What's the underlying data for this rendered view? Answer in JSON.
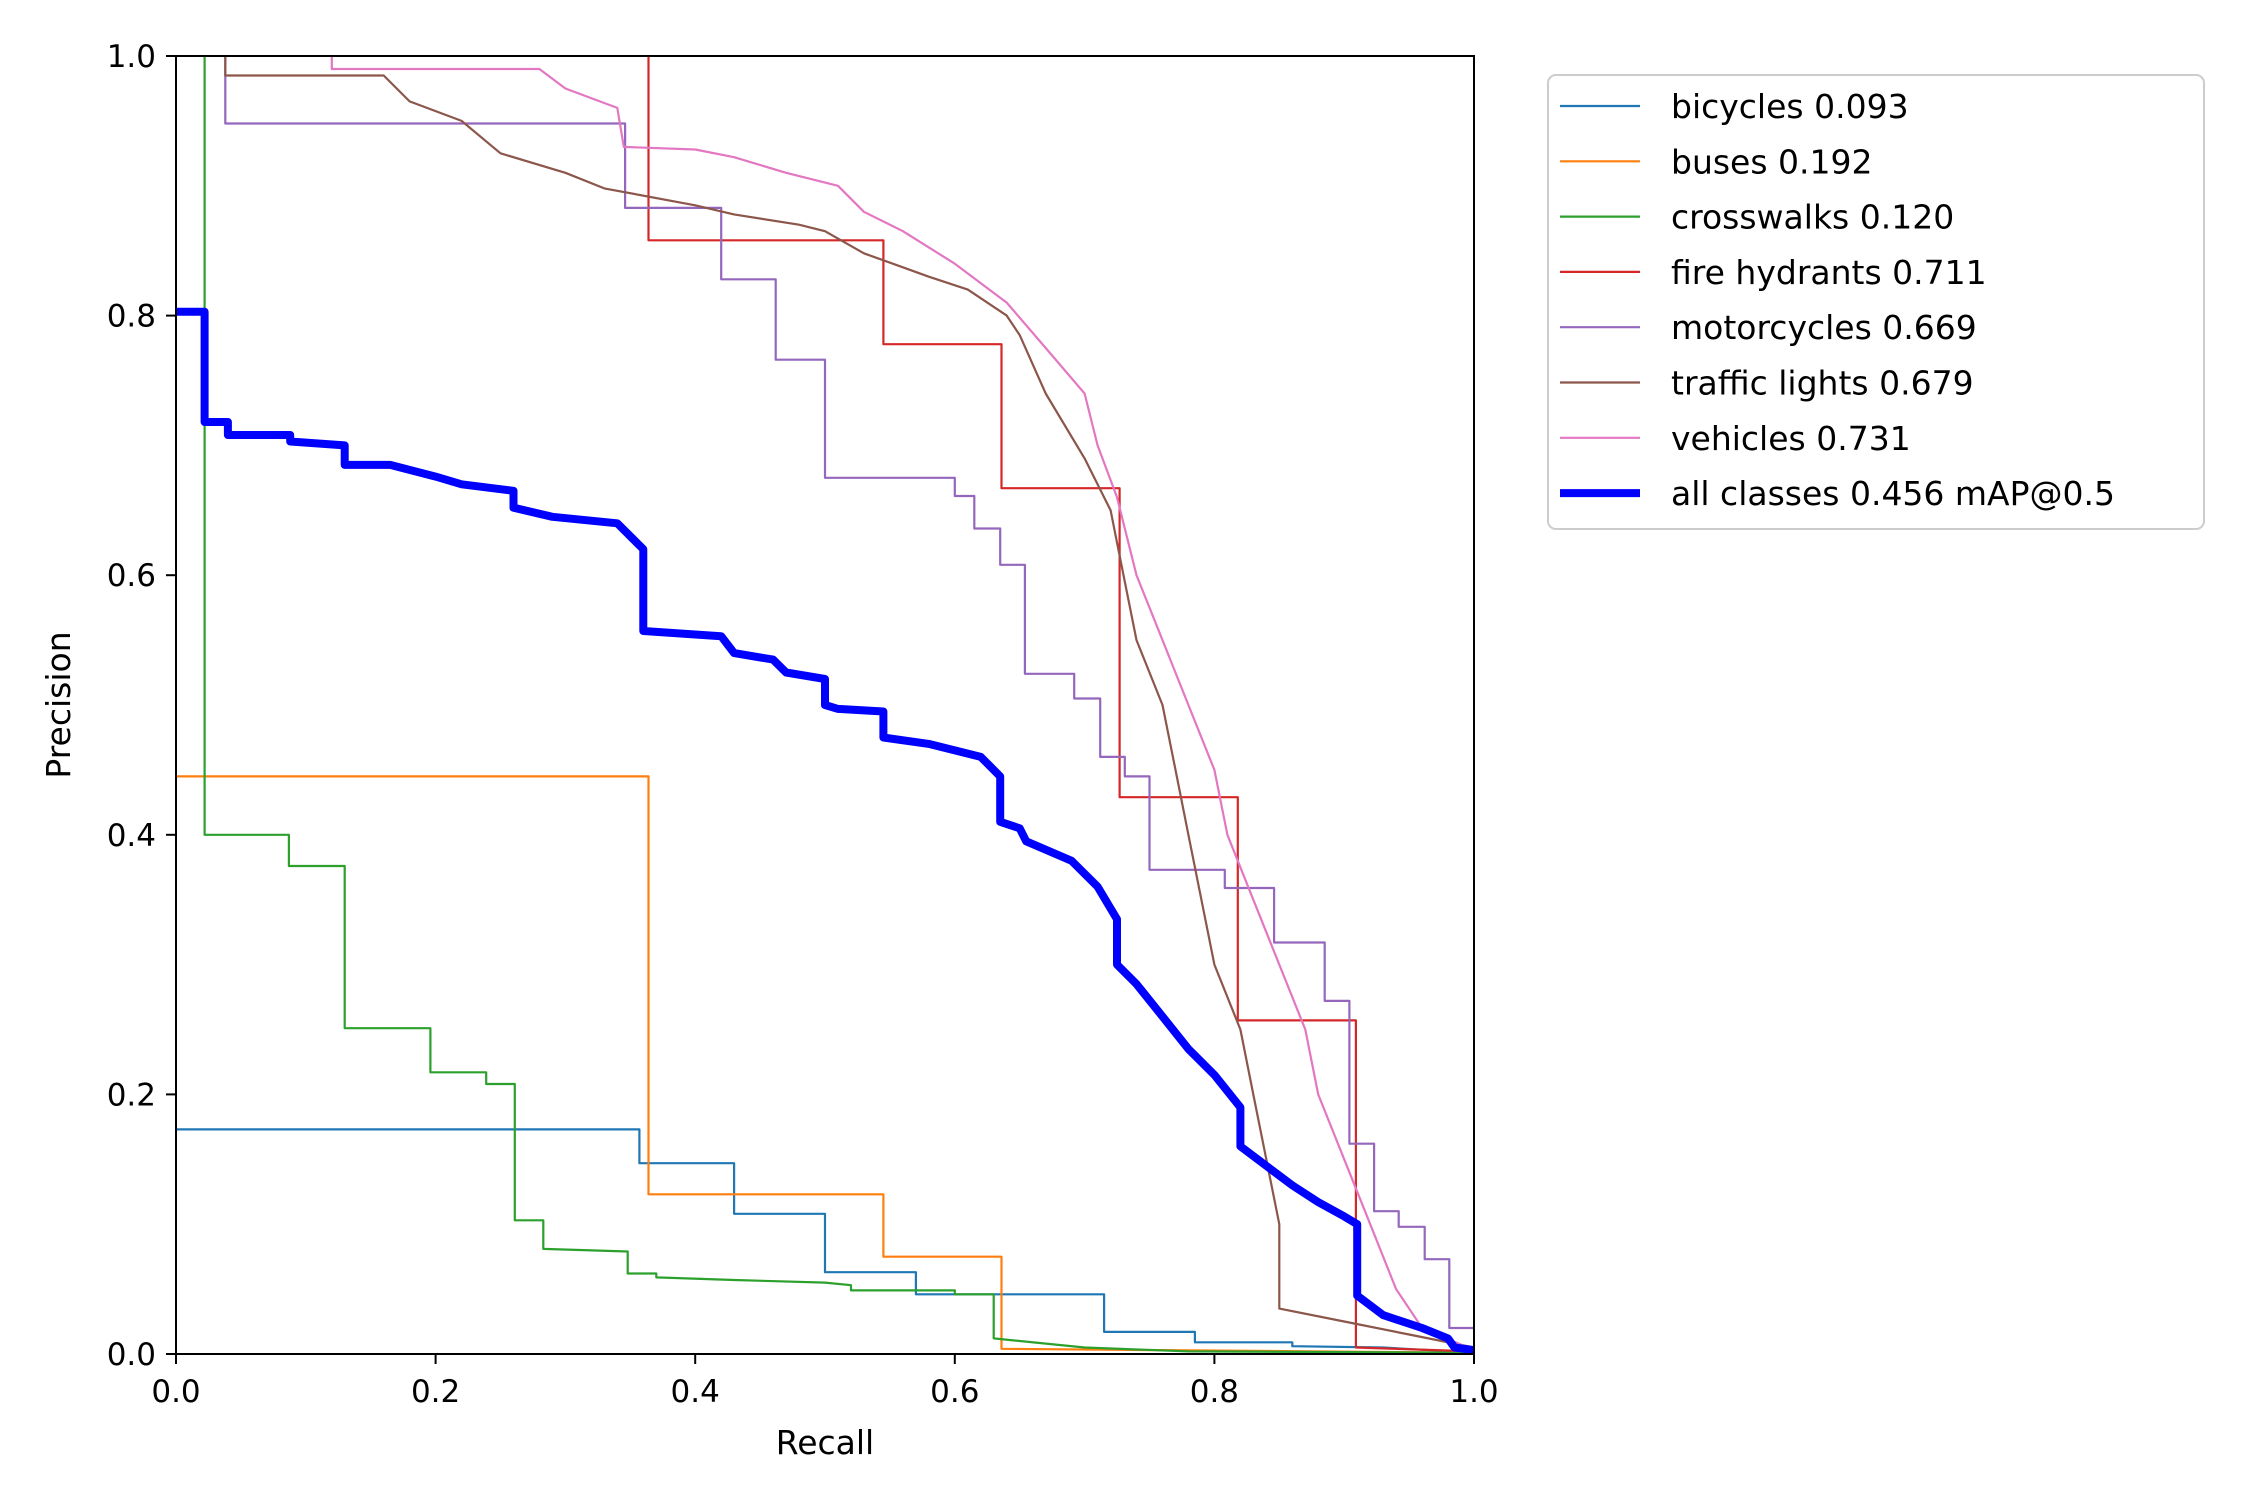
{
  "chart_data": {
    "type": "line",
    "xlabel": "Recall",
    "ylabel": "Precision",
    "xlim": [
      0,
      1
    ],
    "ylim": [
      0,
      1
    ],
    "x_ticks": [
      "0.0",
      "0.2",
      "0.4",
      "0.6",
      "0.8",
      "1.0"
    ],
    "y_ticks": [
      "0.0",
      "0.2",
      "0.4",
      "0.6",
      "0.8",
      "1.0"
    ],
    "grid": false,
    "legend_position": "outside-top-right",
    "series": [
      {
        "name": "bicycles 0.093",
        "color": "#1f77b4",
        "width": "thin",
        "points": [
          [
            0,
            0.173
          ],
          [
            0.357,
            0.173
          ],
          [
            0.357,
            0.147
          ],
          [
            0.43,
            0.147
          ],
          [
            0.43,
            0.108
          ],
          [
            0.5,
            0.108
          ],
          [
            0.5,
            0.063
          ],
          [
            0.57,
            0.063
          ],
          [
            0.57,
            0.046
          ],
          [
            0.715,
            0.046
          ],
          [
            0.715,
            0.017
          ],
          [
            0.785,
            0.017
          ],
          [
            0.785,
            0.009
          ],
          [
            0.86,
            0.009
          ],
          [
            0.86,
            0.006
          ],
          [
            0.93,
            0.005
          ],
          [
            1,
            0.001
          ]
        ]
      },
      {
        "name": "buses 0.192",
        "color": "#ff7f0e",
        "width": "thin",
        "points": [
          [
            0,
            0.445
          ],
          [
            0.364,
            0.445
          ],
          [
            0.364,
            0.123
          ],
          [
            0.545,
            0.123
          ],
          [
            0.545,
            0.075
          ],
          [
            0.636,
            0.075
          ],
          [
            0.636,
            0.004
          ],
          [
            1,
            0.001
          ]
        ]
      },
      {
        "name": "crosswalks 0.120",
        "color": "#2ca02c",
        "width": "thin",
        "points": [
          [
            0.022,
            1.0
          ],
          [
            0.022,
            0.4
          ],
          [
            0.087,
            0.4
          ],
          [
            0.087,
            0.376
          ],
          [
            0.13,
            0.376
          ],
          [
            0.13,
            0.251
          ],
          [
            0.196,
            0.251
          ],
          [
            0.196,
            0.217
          ],
          [
            0.239,
            0.217
          ],
          [
            0.239,
            0.208
          ],
          [
            0.261,
            0.208
          ],
          [
            0.261,
            0.103
          ],
          [
            0.283,
            0.103
          ],
          [
            0.283,
            0.081
          ],
          [
            0.348,
            0.079
          ],
          [
            0.348,
            0.062
          ],
          [
            0.37,
            0.062
          ],
          [
            0.37,
            0.059
          ],
          [
            0.43,
            0.057
          ],
          [
            0.5,
            0.055
          ],
          [
            0.52,
            0.053
          ],
          [
            0.52,
            0.049
          ],
          [
            0.6,
            0.049
          ],
          [
            0.6,
            0.046
          ],
          [
            0.63,
            0.046
          ],
          [
            0.63,
            0.033
          ],
          [
            0.63,
            0.012
          ],
          [
            0.7,
            0.005
          ],
          [
            0.78,
            0.002
          ],
          [
            1,
            0.001
          ]
        ]
      },
      {
        "name": "fire hydrants 0.711",
        "color": "#d62728",
        "width": "thin",
        "points": [
          [
            0.364,
            1.0
          ],
          [
            0.364,
            0.858
          ],
          [
            0.545,
            0.858
          ],
          [
            0.545,
            0.778
          ],
          [
            0.636,
            0.778
          ],
          [
            0.636,
            0.667
          ],
          [
            0.727,
            0.667
          ],
          [
            0.727,
            0.429
          ],
          [
            0.818,
            0.429
          ],
          [
            0.818,
            0.257
          ],
          [
            0.909,
            0.257
          ],
          [
            0.909,
            0.005
          ],
          [
            1,
            0.002
          ]
        ]
      },
      {
        "name": "motorcycles 0.669",
        "color": "#9467bd",
        "width": "thin",
        "points": [
          [
            0.038,
            1.0
          ],
          [
            0.038,
            0.948
          ],
          [
            0.346,
            0.948
          ],
          [
            0.346,
            0.883
          ],
          [
            0.42,
            0.883
          ],
          [
            0.42,
            0.828
          ],
          [
            0.462,
            0.828
          ],
          [
            0.462,
            0.766
          ],
          [
            0.5,
            0.766
          ],
          [
            0.5,
            0.675
          ],
          [
            0.6,
            0.675
          ],
          [
            0.6,
            0.661
          ],
          [
            0.615,
            0.661
          ],
          [
            0.615,
            0.636
          ],
          [
            0.635,
            0.636
          ],
          [
            0.635,
            0.608
          ],
          [
            0.654,
            0.608
          ],
          [
            0.654,
            0.524
          ],
          [
            0.692,
            0.524
          ],
          [
            0.692,
            0.505
          ],
          [
            0.712,
            0.505
          ],
          [
            0.712,
            0.46
          ],
          [
            0.731,
            0.46
          ],
          [
            0.731,
            0.445
          ],
          [
            0.75,
            0.445
          ],
          [
            0.75,
            0.414
          ],
          [
            0.75,
            0.373
          ],
          [
            0.808,
            0.373
          ],
          [
            0.808,
            0.359
          ],
          [
            0.846,
            0.359
          ],
          [
            0.846,
            0.317
          ],
          [
            0.885,
            0.317
          ],
          [
            0.885,
            0.272
          ],
          [
            0.904,
            0.272
          ],
          [
            0.904,
            0.162
          ],
          [
            0.923,
            0.162
          ],
          [
            0.923,
            0.11
          ],
          [
            0.942,
            0.11
          ],
          [
            0.942,
            0.098
          ],
          [
            0.962,
            0.098
          ],
          [
            0.962,
            0.073
          ],
          [
            0.981,
            0.073
          ],
          [
            0.981,
            0.02
          ],
          [
            1,
            0.02
          ]
        ]
      },
      {
        "name": "traffic lights 0.679",
        "color": "#8c564b",
        "width": "thin",
        "points": [
          [
            0.038,
            1.0
          ],
          [
            0.038,
            0.985
          ],
          [
            0.16,
            0.985
          ],
          [
            0.18,
            0.965
          ],
          [
            0.22,
            0.95
          ],
          [
            0.25,
            0.925
          ],
          [
            0.3,
            0.91
          ],
          [
            0.33,
            0.898
          ],
          [
            0.4,
            0.885
          ],
          [
            0.43,
            0.878
          ],
          [
            0.48,
            0.87
          ],
          [
            0.5,
            0.865
          ],
          [
            0.53,
            0.848
          ],
          [
            0.58,
            0.83
          ],
          [
            0.61,
            0.82
          ],
          [
            0.64,
            0.8
          ],
          [
            0.65,
            0.785
          ],
          [
            0.67,
            0.74
          ],
          [
            0.7,
            0.69
          ],
          [
            0.72,
            0.65
          ],
          [
            0.73,
            0.6
          ],
          [
            0.74,
            0.55
          ],
          [
            0.76,
            0.5
          ],
          [
            0.77,
            0.45
          ],
          [
            0.78,
            0.4
          ],
          [
            0.79,
            0.35
          ],
          [
            0.8,
            0.3
          ],
          [
            0.82,
            0.25
          ],
          [
            0.83,
            0.2
          ],
          [
            0.84,
            0.15
          ],
          [
            0.85,
            0.1
          ],
          [
            0.85,
            0.035
          ],
          [
            0.9,
            0.025
          ],
          [
            0.95,
            0.015
          ],
          [
            1,
            0.005
          ]
        ]
      },
      {
        "name": "vehicles 0.731",
        "color": "#e377c2",
        "width": "thin",
        "points": [
          [
            0.12,
            1.0
          ],
          [
            0.12,
            0.99
          ],
          [
            0.28,
            0.99
          ],
          [
            0.3,
            0.975
          ],
          [
            0.34,
            0.96
          ],
          [
            0.345,
            0.93
          ],
          [
            0.4,
            0.928
          ],
          [
            0.43,
            0.922
          ],
          [
            0.47,
            0.91
          ],
          [
            0.51,
            0.9
          ],
          [
            0.53,
            0.88
          ],
          [
            0.56,
            0.865
          ],
          [
            0.6,
            0.84
          ],
          [
            0.64,
            0.81
          ],
          [
            0.67,
            0.775
          ],
          [
            0.7,
            0.74
          ],
          [
            0.71,
            0.7
          ],
          [
            0.725,
            0.66
          ],
          [
            0.74,
            0.6
          ],
          [
            0.76,
            0.55
          ],
          [
            0.78,
            0.5
          ],
          [
            0.8,
            0.45
          ],
          [
            0.81,
            0.4
          ],
          [
            0.83,
            0.35
          ],
          [
            0.85,
            0.3
          ],
          [
            0.87,
            0.25
          ],
          [
            0.88,
            0.2
          ],
          [
            0.9,
            0.15
          ],
          [
            0.92,
            0.1
          ],
          [
            0.94,
            0.05
          ],
          [
            0.96,
            0.02
          ],
          [
            1,
            0.003
          ]
        ]
      },
      {
        "name": "all classes 0.456 mAP@0.5",
        "color": "#0000ff",
        "width": "thick",
        "points": [
          [
            0,
            0.803
          ],
          [
            0.022,
            0.803
          ],
          [
            0.022,
            0.718
          ],
          [
            0.04,
            0.718
          ],
          [
            0.04,
            0.708
          ],
          [
            0.088,
            0.708
          ],
          [
            0.088,
            0.703
          ],
          [
            0.13,
            0.7
          ],
          [
            0.13,
            0.685
          ],
          [
            0.165,
            0.685
          ],
          [
            0.2,
            0.676
          ],
          [
            0.22,
            0.67
          ],
          [
            0.26,
            0.665
          ],
          [
            0.26,
            0.652
          ],
          [
            0.29,
            0.645
          ],
          [
            0.34,
            0.64
          ],
          [
            0.36,
            0.62
          ],
          [
            0.36,
            0.557
          ],
          [
            0.42,
            0.553
          ],
          [
            0.43,
            0.54
          ],
          [
            0.46,
            0.535
          ],
          [
            0.47,
            0.525
          ],
          [
            0.5,
            0.52
          ],
          [
            0.5,
            0.5
          ],
          [
            0.51,
            0.497
          ],
          [
            0.545,
            0.495
          ],
          [
            0.545,
            0.475
          ],
          [
            0.58,
            0.47
          ],
          [
            0.6,
            0.465
          ],
          [
            0.62,
            0.46
          ],
          [
            0.635,
            0.445
          ],
          [
            0.635,
            0.41
          ],
          [
            0.65,
            0.405
          ],
          [
            0.655,
            0.395
          ],
          [
            0.69,
            0.38
          ],
          [
            0.71,
            0.36
          ],
          [
            0.725,
            0.335
          ],
          [
            0.725,
            0.3
          ],
          [
            0.74,
            0.285
          ],
          [
            0.76,
            0.26
          ],
          [
            0.78,
            0.235
          ],
          [
            0.8,
            0.215
          ],
          [
            0.82,
            0.19
          ],
          [
            0.82,
            0.16
          ],
          [
            0.84,
            0.145
          ],
          [
            0.86,
            0.13
          ],
          [
            0.88,
            0.117
          ],
          [
            0.9,
            0.106
          ],
          [
            0.91,
            0.1
          ],
          [
            0.91,
            0.045
          ],
          [
            0.93,
            0.03
          ],
          [
            0.96,
            0.02
          ],
          [
            0.98,
            0.012
          ],
          [
            0.985,
            0.005
          ],
          [
            1,
            0.003
          ]
        ]
      }
    ]
  }
}
